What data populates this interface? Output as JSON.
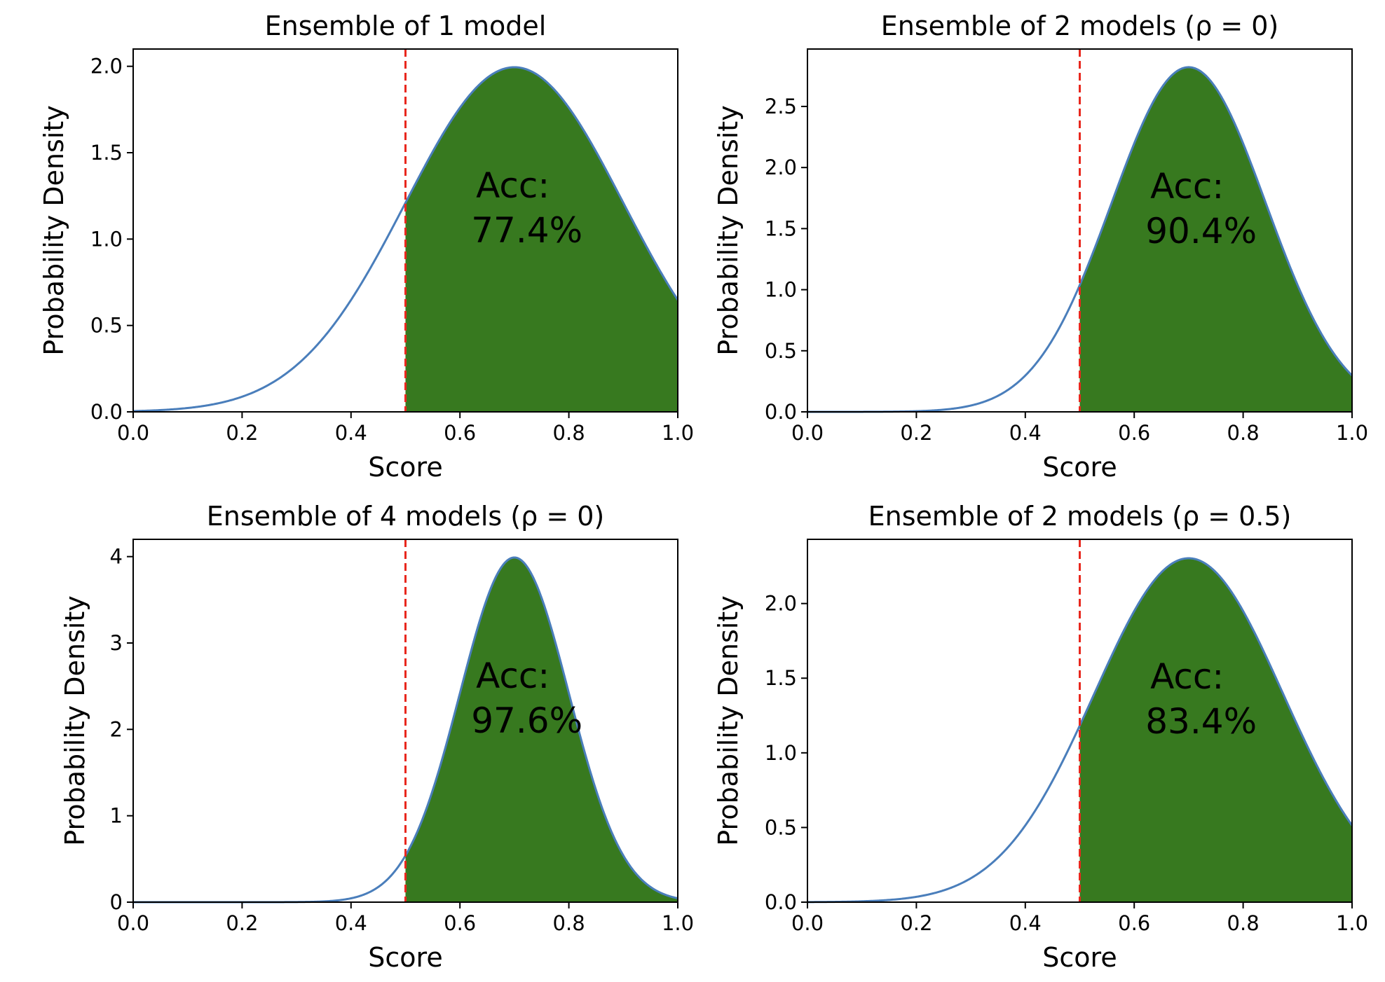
{
  "figure": {
    "threshold": 0.5,
    "colors": {
      "curve": "#4a7ebb",
      "fill": "#37791f",
      "threshold_line": "#e8281e",
      "axes": "#000000"
    }
  },
  "chart_data": [
    {
      "type": "area",
      "title": "Ensemble of 1 model",
      "xlabel": "Score",
      "ylabel": "Probability Density",
      "xlim": [
        0,
        1
      ],
      "ylim": [
        0,
        2.1
      ],
      "xticks": [
        "0.0",
        "0.2",
        "0.4",
        "0.6",
        "0.8",
        "1.0"
      ],
      "yticks": [
        "0.0",
        "0.5",
        "1.0",
        "1.5",
        "2.0"
      ],
      "ytick_values": [
        0,
        0.5,
        1.0,
        1.5,
        2.0
      ],
      "series": [
        {
          "mean": 0.7,
          "std": 0.2
        }
      ],
      "threshold": 0.5,
      "annotation": {
        "label": "Acc:",
        "value": "77.4%",
        "x": 0.71,
        "y": 1.24
      }
    },
    {
      "type": "area",
      "title": "Ensemble of 2 models (ρ = 0)",
      "xlabel": "Score",
      "ylabel": "Probability Density",
      "xlim": [
        0,
        1
      ],
      "ylim": [
        0,
        2.97
      ],
      "xticks": [
        "0.0",
        "0.2",
        "0.4",
        "0.6",
        "0.8",
        "1.0"
      ],
      "yticks": [
        "0.0",
        "0.5",
        "1.0",
        "1.5",
        "2.0",
        "2.5"
      ],
      "ytick_values": [
        0,
        0.5,
        1.0,
        1.5,
        2.0,
        2.5
      ],
      "series": [
        {
          "mean": 0.7,
          "std": 0.1414
        }
      ],
      "threshold": 0.5,
      "annotation": {
        "label": "Acc:",
        "value": "90.4%",
        "x": 0.71,
        "y": 1.75
      }
    },
    {
      "type": "area",
      "title": "Ensemble of 4 models (ρ = 0)",
      "xlabel": "Score",
      "ylabel": "Probability Density",
      "xlim": [
        0,
        1
      ],
      "ylim": [
        0,
        4.2
      ],
      "xticks": [
        "0.0",
        "0.2",
        "0.4",
        "0.6",
        "0.8",
        "1.0"
      ],
      "yticks": [
        "0",
        "1",
        "2",
        "3",
        "4"
      ],
      "ytick_values": [
        0,
        1,
        2,
        3,
        4
      ],
      "series": [
        {
          "mean": 0.7,
          "std": 0.1
        }
      ],
      "threshold": 0.5,
      "annotation": {
        "label": "Acc:",
        "value": "97.6%",
        "x": 0.71,
        "y": 2.48
      }
    },
    {
      "type": "area",
      "title": "Ensemble of 2 models (ρ = 0.5)",
      "xlabel": "Score",
      "ylabel": "Probability Density",
      "xlim": [
        0,
        1
      ],
      "ylim": [
        0,
        2.43
      ],
      "xticks": [
        "0.0",
        "0.2",
        "0.4",
        "0.6",
        "0.8",
        "1.0"
      ],
      "yticks": [
        "0.0",
        "0.5",
        "1.0",
        "1.5",
        "2.0"
      ],
      "ytick_values": [
        0,
        0.5,
        1.0,
        1.5,
        2.0
      ],
      "series": [
        {
          "mean": 0.7,
          "std": 0.1732
        }
      ],
      "threshold": 0.5,
      "annotation": {
        "label": "Acc:",
        "value": "83.4%",
        "x": 0.71,
        "y": 1.43
      }
    }
  ]
}
